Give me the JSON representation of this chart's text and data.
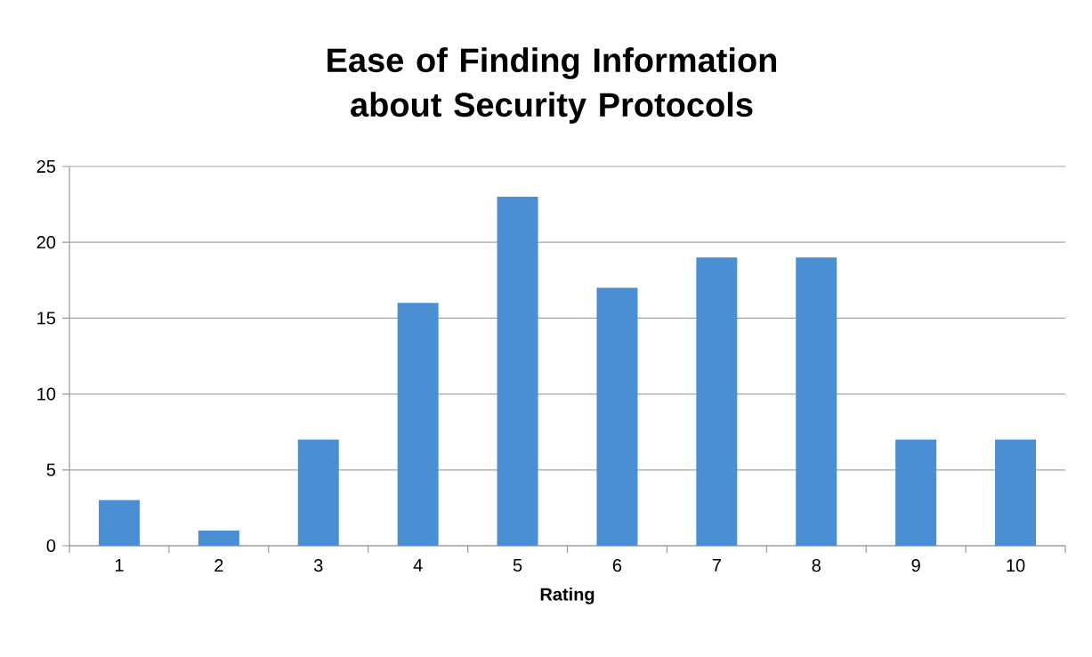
{
  "chart_data": {
    "type": "bar",
    "title": "Ease of Finding Information about Security Protocols",
    "xlabel": "Rating",
    "categories": [
      "1",
      "2",
      "3",
      "4",
      "5",
      "6",
      "7",
      "8",
      "9",
      "10"
    ],
    "values": [
      3,
      1,
      7,
      16,
      23,
      17,
      19,
      19,
      7,
      7
    ],
    "color": "#4a8fd4",
    "ylim": [
      0,
      25
    ],
    "yticks": [
      0,
      5,
      10,
      15,
      20,
      25
    ],
    "grid": "y"
  }
}
